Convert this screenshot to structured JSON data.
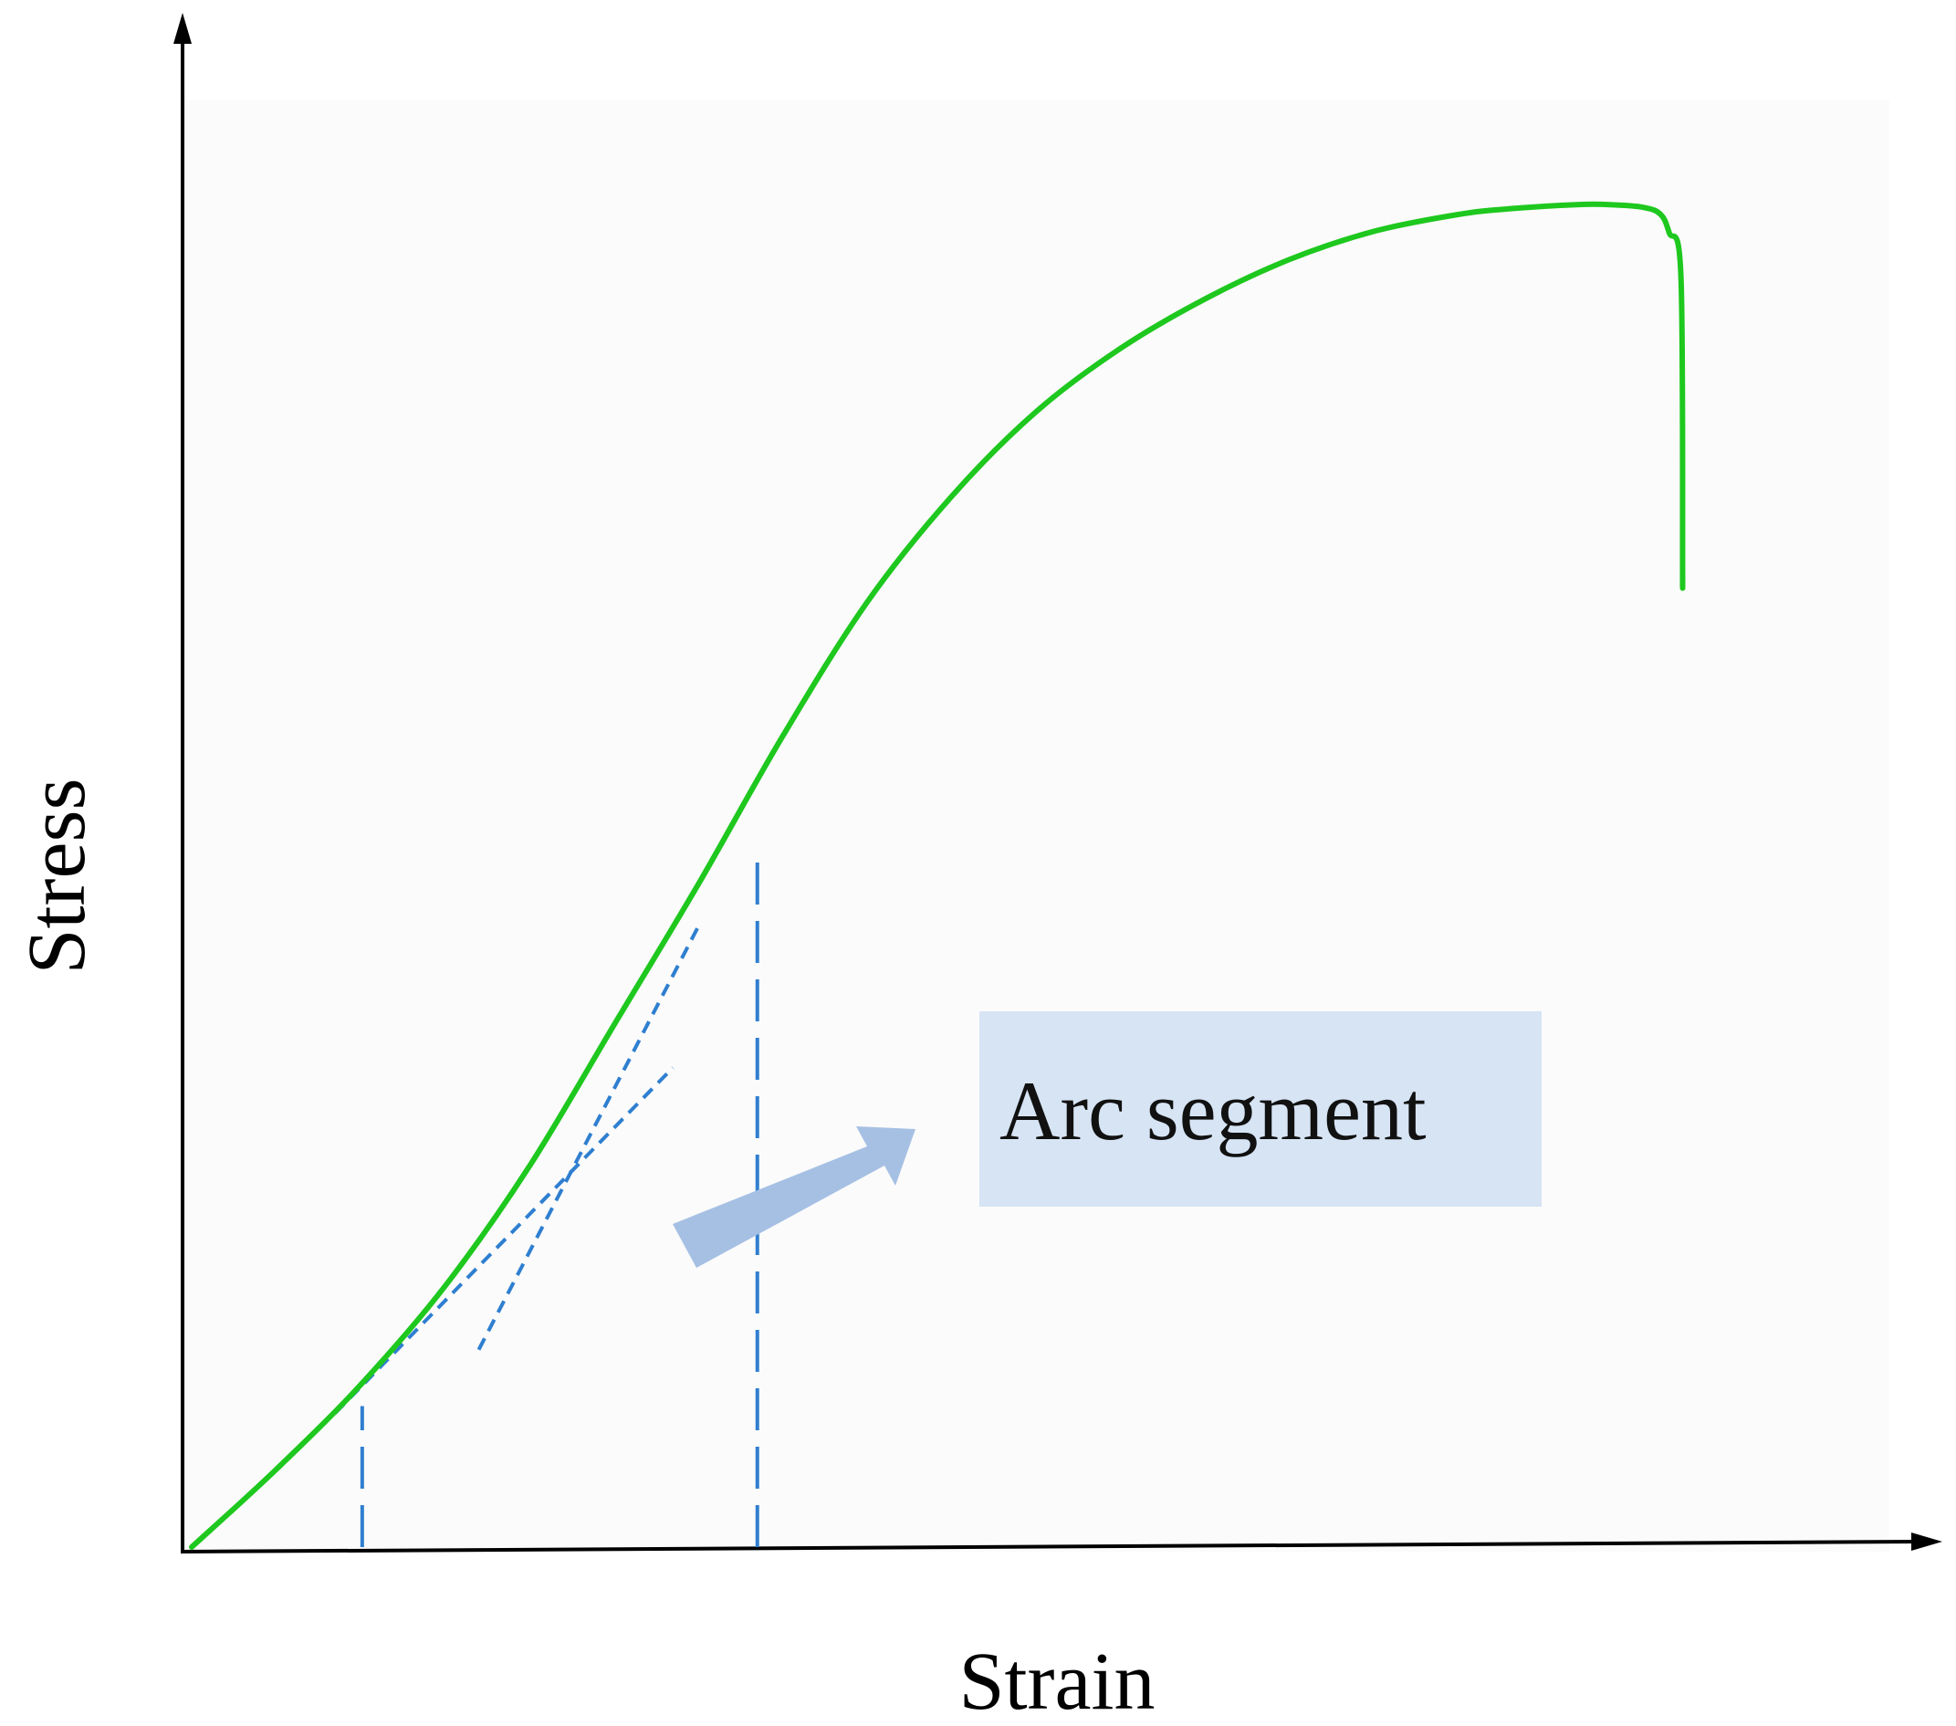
{
  "chart_data": {
    "type": "line",
    "title": "",
    "xlabel": "Strain",
    "ylabel": "Stress",
    "xlim": [
      0,
      100
    ],
    "ylim": [
      0,
      100
    ],
    "ticks": false,
    "grid": false,
    "series": [
      {
        "color": "#1ec81e",
        "x": [
          0,
          5,
          10,
          15,
          20,
          25,
          30,
          35,
          40,
          45,
          50,
          55,
          60,
          65,
          70,
          75,
          78,
          82,
          84,
          86,
          87,
          87.5,
          88.2,
          88.3
        ],
        "y": [
          0,
          5.5,
          11.5,
          18.5,
          27,
          37,
          47,
          57.5,
          67,
          74.5,
          80.5,
          85,
          88.5,
          91.3,
          93.3,
          94.5,
          94.9,
          95.2,
          95.2,
          95.0,
          94.5,
          93.2,
          90,
          68
        ]
      }
    ],
    "annotations": {
      "label_box": {
        "text": "Arc segment",
        "fill": "#d6e4f4"
      },
      "pointer_arrow": {
        "color": "#a6c0e4"
      },
      "tangent_lines": {
        "color": "#2f7fd0",
        "dash": "dashed",
        "lines": [
          {
            "x": [
              8.5,
              28.5
            ],
            "y": [
              9.5,
              34
            ]
          },
          {
            "x": [
              17,
              30
            ],
            "y": [
              14,
              44
            ]
          }
        ]
      },
      "vertical_markers": {
        "color": "#2f7fd0",
        "dash": "long-dash",
        "lines": [
          {
            "x": 10.1,
            "y": [
              0,
              10
            ]
          },
          {
            "x": 33.5,
            "y": [
              0,
              49
            ]
          }
        ]
      }
    },
    "colors": {
      "axis": "#000000",
      "curve": "#1ec81e",
      "guides": "#2f7fd0",
      "label_box": "#d6e4f4",
      "arrow": "#a6c0e4"
    }
  }
}
